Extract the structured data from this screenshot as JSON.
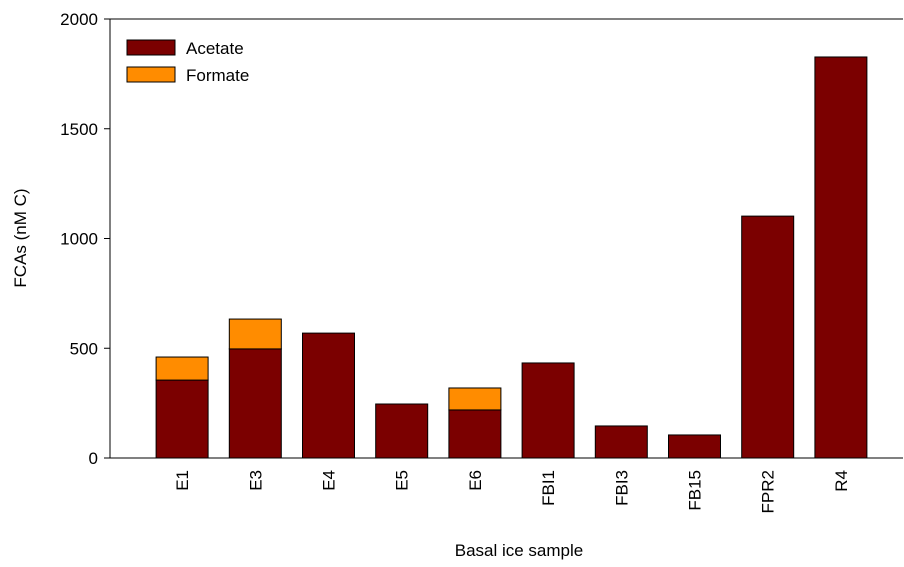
{
  "chart_data": {
    "type": "stacked-bar",
    "xlabel": "Basal ice sample",
    "ylabel": "FCAs (nM C)",
    "categories": [
      "E1",
      "E3",
      "E4",
      "E5",
      "E6",
      "FBI1",
      "FBI3",
      "FB15",
      "FPR2",
      "R4"
    ],
    "series": [
      {
        "name": "Acetate",
        "color": "#7b0000",
        "values": [
          355,
          497,
          569,
          246,
          219,
          433,
          146,
          105,
          1102,
          1827
        ]
      },
      {
        "name": "Formate",
        "color": "#ff8c00",
        "values": [
          105,
          136,
          null,
          null,
          100,
          null,
          null,
          null,
          null,
          null
        ]
      }
    ],
    "ylim": [
      0,
      2000
    ],
    "yticks": [
      0,
      500,
      1000,
      1500,
      2000
    ],
    "legend": "top-left"
  }
}
